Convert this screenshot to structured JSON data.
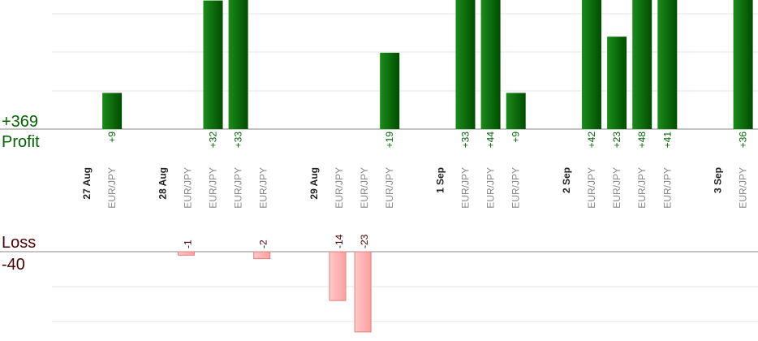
{
  "chart_data": {
    "type": "bar",
    "profit_label": "Profit",
    "loss_label": "Loss",
    "profit_total": "+369",
    "loss_total": "-40",
    "columns": [
      {
        "kind": "date",
        "label": "27 Aug"
      },
      {
        "kind": "trade",
        "label": "EUR/JPY",
        "value": 9,
        "text": "+9"
      },
      {
        "kind": "gap"
      },
      {
        "kind": "date",
        "label": "28 Aug"
      },
      {
        "kind": "trade",
        "label": "EUR/JPY",
        "value": -1,
        "text": "-1"
      },
      {
        "kind": "trade",
        "label": "EUR/JPY",
        "value": 32,
        "text": "+32"
      },
      {
        "kind": "trade",
        "label": "EUR/JPY",
        "value": 33,
        "text": "+33"
      },
      {
        "kind": "trade",
        "label": "EUR/JPY",
        "value": -2,
        "text": "-2"
      },
      {
        "kind": "gap"
      },
      {
        "kind": "date",
        "label": "29 Aug"
      },
      {
        "kind": "trade",
        "label": "EUR/JPY",
        "value": -14,
        "text": "-14"
      },
      {
        "kind": "trade",
        "label": "EUR/JPY",
        "value": -23,
        "text": "-23"
      },
      {
        "kind": "trade",
        "label": "EUR/JPY",
        "value": 19,
        "text": "+19"
      },
      {
        "kind": "gap"
      },
      {
        "kind": "date",
        "label": "1 Sep"
      },
      {
        "kind": "trade",
        "label": "EUR/JPY",
        "value": 33,
        "text": "+33"
      },
      {
        "kind": "trade",
        "label": "EUR/JPY",
        "value": 44,
        "text": "+44"
      },
      {
        "kind": "trade",
        "label": "EUR/JPY",
        "value": 9,
        "text": "+9"
      },
      {
        "kind": "gap"
      },
      {
        "kind": "date",
        "label": "2 Sep"
      },
      {
        "kind": "trade",
        "label": "EUR/JPY",
        "value": 42,
        "text": "+42"
      },
      {
        "kind": "trade",
        "label": "EUR/JPY",
        "value": 23,
        "text": "+23"
      },
      {
        "kind": "trade",
        "label": "EUR/JPY",
        "value": 48,
        "text": "+48"
      },
      {
        "kind": "trade",
        "label": "EUR/JPY",
        "value": 41,
        "text": "+41"
      },
      {
        "kind": "gap"
      },
      {
        "kind": "date",
        "label": "3 Sep"
      },
      {
        "kind": "trade",
        "label": "EUR/JPY",
        "value": 36,
        "text": "+36"
      }
    ],
    "colors": {
      "profit_label": "#006400",
      "loss_label": "#4a0000",
      "profit_bar_dark": "#004d00",
      "profit_bar_light": "#1a8c1a",
      "loss_bar_fill": "#ffb3b3",
      "loss_bar_stroke": "#e08080",
      "category_text": "#888888",
      "date_text": "#222222",
      "baseline": "#888888",
      "gridline": "#e6e6e6"
    },
    "grid": true
  }
}
